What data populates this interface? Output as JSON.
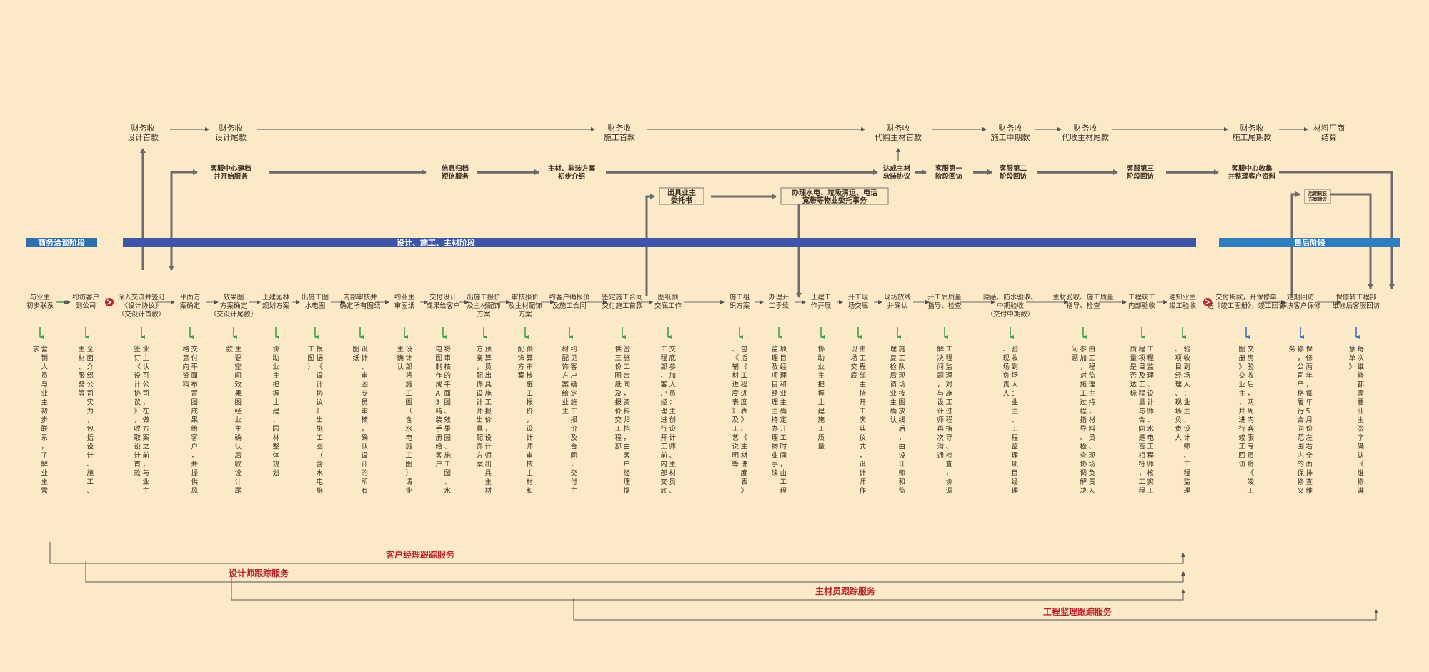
{
  "finance": [
    {
      "text": "财务收\n设计首款"
    },
    {
      "text": "财务收\n设计尾款"
    },
    {
      "text": "财务收\n施工首款"
    },
    {
      "text": "财务收\n代购主材首款"
    },
    {
      "text": "财务收\n施工中期款"
    },
    {
      "text": "财务收\n代收主材尾款"
    },
    {
      "text": "财务收\n施工尾期款"
    },
    {
      "text": "材料厂商\n结算"
    }
  ],
  "service": [
    {
      "text": "客服中心建档\n并开始服务"
    },
    {
      "text": "信息归档\n短信服务"
    },
    {
      "text": "主材、软装方案\n初步介绍"
    },
    {
      "text": "达成主材\n软装协议"
    },
    {
      "text": "客服第一\n阶段回访"
    },
    {
      "text": "客服第二\n阶段回访"
    },
    {
      "text": "客服第三\n阶段回访"
    },
    {
      "text": "客服中心收集\n并整理客户资料"
    }
  ],
  "boxes": {
    "authorization": "出具业主\n委托书",
    "utilities": "办理水电、垃圾清运、电话\n宽带等物业委托事务",
    "aftersale": "后期软装\n方案建议"
  },
  "phases": [
    {
      "label": "商务洽谈阶段",
      "color": "#2e6fad"
    },
    {
      "label": "设计、施工、主材阶段",
      "color": "#3d56a8"
    },
    {
      "label": "售后阶段",
      "color": "#2e7fc1"
    }
  ],
  "steps": [
    {
      "title": "与业主\n初步联系",
      "desc": "营销人员与业主初步联系，了解业主需求"
    },
    {
      "title": "约访客户\n到公司",
      "desc": "全面介绍公司实力，包括设计、施工、主材、服务等"
    },
    {
      "title": "深入交流并签订\n《设计协议》\n（交设计首款）",
      "desc": "业主认可公司，在做方案之前，与业主签订《设计协议》，收取设计首款"
    },
    {
      "title": "平面方\n案确定",
      "desc": "交付平面布置图成果给客户，并提供风格意向资料"
    },
    {
      "title": "效果图\n方案确定\n（交设计尾款）",
      "desc": "主要空间效果图经业主确认后收设计尾款"
    },
    {
      "title": "土建园林\n规划方案",
      "desc": "协助业主把握土建、园林整体规划"
    },
    {
      "title": "出施工图\n水电图",
      "desc": "根据《设计协议》出施工图（含水电施工图）"
    },
    {
      "title": "内部审核并\n确定所有图纸",
      "desc": "设计、审图专员审核，确认设计的所有图纸"
    },
    {
      "title": "约业主\n审图纸",
      "desc": "设计部将施工图（含水电施工图）请业主确认"
    },
    {
      "title": "交付设计\n成果给客户",
      "desc": "将审核的平面图、效果图、施工图、水电图制作成A3精装手册给客户"
    },
    {
      "title": "出施工报价\n及主材配饰\n方案",
      "desc": "预算员出具施工报价，设计师出具主材方案，配饰设计师出具配饰方案"
    },
    {
      "title": "审核报价\n及主材配饰\n方案",
      "desc": "预算审核施工报价，设计师审核主材和配饰方案"
    },
    {
      "title": "约客户确报价\n及施工合同",
      "desc": "约见客户确定施工报价及合同，交付主材配饰方案给业主"
    },
    {
      "title": "签定施工合同\n交付施工首款",
      "desc": "签施工合同，资料归档，由客户经理提供三份图纸及报价交工程部"
    },
    {
      "title": "图纸预\n交底工作",
      "desc": "交底参加人员：主创设计师、主材员、工程部、客户经理进行开工前内部交底"
    },
    {
      "title": "施工组\n织方案",
      "desc": "包括《工程进度表》、《主材进度表》、《辅材进度表》及工艺说明等"
    },
    {
      "title": "办理开\n工手续",
      "desc": "项目经理和业主确定开工时间，由工程监理及项目经理主持办理物业手续"
    },
    {
      "title": "土建工\n作开展",
      "desc": "协助业主把握土建施工质量"
    },
    {
      "title": "开工现\n场交底",
      "desc": "由工程部主持开工庆典仪式，设计师作现场交底"
    },
    {
      "title": "现场放线\n并确认",
      "desc": "施工队现场按图放线后，由设计师和监理复检后请业主确认"
    },
    {
      "title": "开工后质量\n指导、检查",
      "desc": "工程监理对施工过程指导、检查，协调解决问题，与设计师再次沟通"
    },
    {
      "title": "隐蔽、防水验收、\n中期验收\n（交付中期款）",
      "desc": "验收到场人：业主、工程监理项目经理、现场负责人"
    },
    {
      "title": "主材验收、施工质量\n指导、检查",
      "desc": "由工程监理主持，材料员、现场负责人参加，对施工过程指导、检查协调解决问题"
    },
    {
      "title": "工程竣工\n内部验收",
      "desc": "工程监理、设计师、水电工程师核实工程项目及工程量与合同是否相符，工程质量是否达标"
    },
    {
      "title": "通知业主\n竣工验收",
      "desc": "验收到场人：业主、设计师、工程监理、项目经理、现场负责人"
    },
    {
      "title": "交付揭款，开保修单\n送《竣工图册》，竣工回访",
      "desc": "交房验收后，两周内客服专员将《竣工图册》交业主，并进行竣工回访"
    },
    {
      "title": "定期回访\n解决客户保修",
      "desc": "保修两年，每年5月份左右全面排查维修，公司严格履行合同范围内的保修义务"
    },
    {
      "title": "保修转工程部\n维修后客服回访",
      "desc": "每次维修都需要业主签字确认《维修满意单》"
    }
  ],
  "tracks": [
    {
      "label": "客户经理跟踪服务",
      "color": "#b8262b"
    },
    {
      "label": "设计师跟踪服务",
      "color": "#b8262b"
    },
    {
      "label": "主材员跟踪服务",
      "color": "#b8262b"
    },
    {
      "label": "工程监理跟踪服务",
      "color": "#b8262b"
    }
  ],
  "colors": {
    "arrow": "#6b6b6b",
    "green": "#3fa34d",
    "blue": "#3f74c9",
    "red": "#b8262b",
    "text": "#3a2e22"
  }
}
